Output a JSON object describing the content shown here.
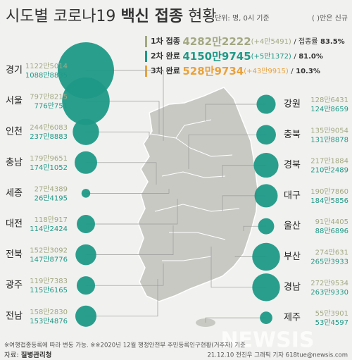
{
  "header": {
    "title_a": "시도별 코로나19",
    "title_b": "백신 접종",
    "title_c": "현황",
    "unit": "단위: 명, 0시 기준",
    "note": "( )안은 신규"
  },
  "summary": [
    {
      "label": "1차 접종",
      "total": "4282만2222",
      "new": "(+4만5491)",
      "rate_prefix": "/ 접종률",
      "rate": "83.5%",
      "color": "#a3a883"
    },
    {
      "label": "2차 완료",
      "total": "4150만9745",
      "new": "(+5만1372)",
      "rate_prefix": "/",
      "rate": "81.0%",
      "color": "#1f9987"
    },
    {
      "label": "3차 완료",
      "total": "528만9734",
      "new": "(+43만9915)",
      "rate_prefix": "/",
      "rate": "10.3%",
      "color": "#e9a23b"
    }
  ],
  "regions": [
    {
      "name": "경기",
      "side": "left",
      "first": {
        "value": 11225014,
        "label": "1122만5014"
      },
      "second": {
        "value": 10888835,
        "label": "1088만8835"
      }
    },
    {
      "name": "서울",
      "side": "left",
      "first": {
        "value": 7978215,
        "label": "797만8215"
      },
      "second": {
        "value": 7760751,
        "label": "776만751"
      }
    },
    {
      "name": "인천",
      "side": "left",
      "first": {
        "value": 2446083,
        "label": "244만6083"
      },
      "second": {
        "value": 2378883,
        "label": "237만8883"
      }
    },
    {
      "name": "충남",
      "side": "left",
      "first": {
        "value": 1799651,
        "label": "179만9651"
      },
      "second": {
        "value": 1741052,
        "label": "174만1052"
      }
    },
    {
      "name": "세종",
      "side": "left",
      "first": {
        "value": 274389,
        "label": "27만4389"
      },
      "second": {
        "value": 264195,
        "label": "26만4195"
      }
    },
    {
      "name": "대전",
      "side": "left",
      "first": {
        "value": 1180917,
        "label": "118만917"
      },
      "second": {
        "value": 1142424,
        "label": "114만2424"
      }
    },
    {
      "name": "전북",
      "side": "left",
      "first": {
        "value": 1523092,
        "label": "152만3092"
      },
      "second": {
        "value": 1478776,
        "label": "147만8776"
      }
    },
    {
      "name": "광주",
      "side": "left",
      "first": {
        "value": 1197383,
        "label": "119만7383"
      },
      "second": {
        "value": 1156165,
        "label": "115만6165"
      }
    },
    {
      "name": "전남",
      "side": "left",
      "first": {
        "value": 1582830,
        "label": "158만2830"
      },
      "second": {
        "value": 1534876,
        "label": "153만4876"
      }
    },
    {
      "name": "강원",
      "side": "right",
      "first": {
        "value": 1286431,
        "label": "128만6431"
      },
      "second": {
        "value": 1248659,
        "label": "124만8659"
      }
    },
    {
      "name": "충북",
      "side": "right",
      "first": {
        "value": 1359054,
        "label": "135만9054"
      },
      "second": {
        "value": 1318878,
        "label": "131만8878"
      }
    },
    {
      "name": "경북",
      "side": "right",
      "first": {
        "value": 2171884,
        "label": "217만1884"
      },
      "second": {
        "value": 2102489,
        "label": "210만2489"
      }
    },
    {
      "name": "대구",
      "side": "right",
      "first": {
        "value": 1907860,
        "label": "190만7860"
      },
      "second": {
        "value": 1845856,
        "label": "184만5856"
      }
    },
    {
      "name": "울산",
      "side": "right",
      "first": {
        "value": 914405,
        "label": "91만4405"
      },
      "second": {
        "value": 886896,
        "label": "88만6896"
      }
    },
    {
      "name": "부산",
      "side": "right",
      "first": {
        "value": 2740631,
        "label": "274만631"
      },
      "second": {
        "value": 2653933,
        "label": "265만3933"
      }
    },
    {
      "name": "경남",
      "side": "right",
      "first": {
        "value": 2729534,
        "label": "272만9534"
      },
      "second": {
        "value": 2639330,
        "label": "263만9330"
      }
    },
    {
      "name": "제주",
      "side": "right",
      "first": {
        "value": 553901,
        "label": "55만3901"
      },
      "second": {
        "value": 534597,
        "label": "53만4597"
      }
    }
  ],
  "footer": {
    "notes": "※여행접종등록에 따라 변동 가능.  ※※2020년 12월 행정안전부 주민등록인구현황(거주자) 기준",
    "source_label": "자료:",
    "source": "질병관리청",
    "credit": "21.12.10 전진우 그래픽 기자 618tue@newsis.com",
    "watermark": "NEWSIS"
  },
  "circle_color": "#1f9987"
}
